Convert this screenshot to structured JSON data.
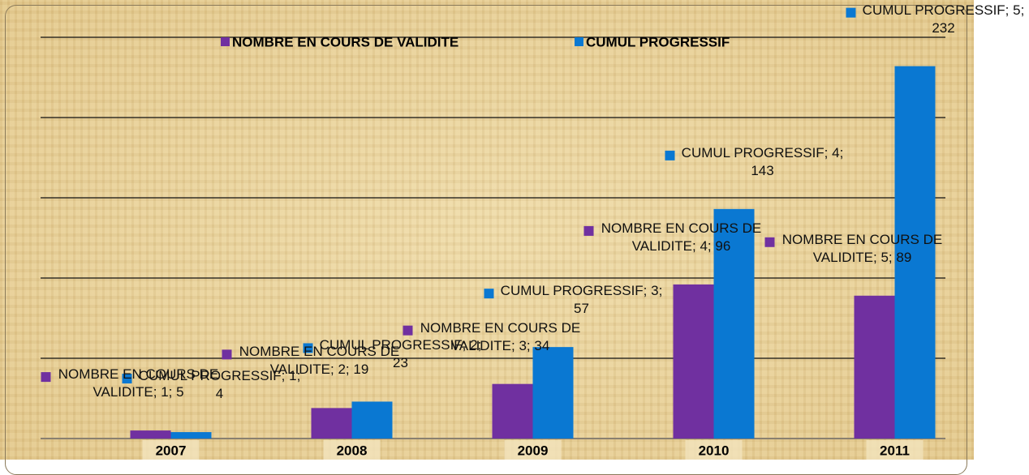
{
  "chart_data": {
    "type": "bar",
    "categories": [
      "2007",
      "2008",
      "2009",
      "2010",
      "2011"
    ],
    "series": [
      {
        "name": "NOMBRE EN COURS DE VALIDITE",
        "color": "#7030a0",
        "values": [
          5,
          19,
          34,
          96,
          89
        ],
        "value_labels": [
          "NOMBRE EN COURS DE VALIDITE; 1; 5",
          "NOMBRE EN COURS DE VALIDITE; 2; 19",
          "NOMBRE EN COURS DE VALIDITE; 3; 34",
          "NOMBRE EN COURS DE VALIDITE; 4; 96",
          "NOMBRE EN COURS DE VALIDITE; 5; 89"
        ]
      },
      {
        "name": "CUMUL PROGRESSIF",
        "color": "#0a78d2",
        "values": [
          4,
          23,
          57,
          143,
          232
        ],
        "value_labels": [
          "CUMUL PROGRESSIF; 1; 4",
          "CUMUL PROGRESSIF; 2; 23",
          "CUMUL PROGRESSIF; 3; 57",
          "CUMUL PROGRESSIF; 4; 143",
          "CUMUL PROGRESSIF; 5; 232"
        ]
      }
    ],
    "ylim": [
      0,
      250
    ],
    "yticks": [
      0,
      50,
      100,
      150,
      200,
      250
    ],
    "grid": true,
    "legend": "top"
  }
}
